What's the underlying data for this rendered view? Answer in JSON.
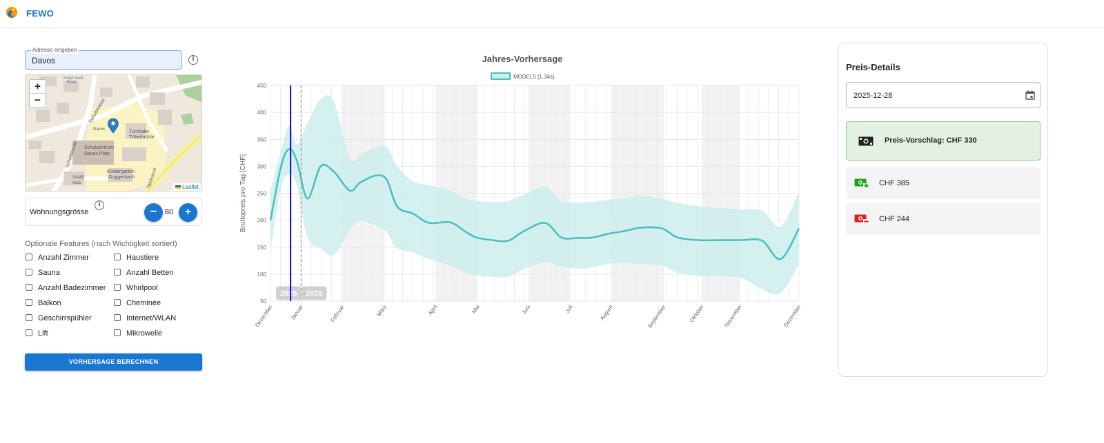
{
  "header": {
    "brand": "FEWO",
    "logo_icon": "wave-logo-icon"
  },
  "address": {
    "legend": "Adresse eingeben",
    "value": "Davos"
  },
  "map": {
    "zoom_in": "+",
    "zoom_out": "−",
    "attribution": "Leaflet",
    "labels": [
      "Hotel Hard Rock",
      "Schulstrasse",
      "Turnhalle Töbelmühle",
      "Schulzentrum Davos Platz",
      "Kindergarten Guggerbach",
      "SAMD Aula",
      "Talstrasse",
      "Davos"
    ]
  },
  "size": {
    "label": "Wohnungsgrösse",
    "value": "80",
    "minus": "−",
    "plus": "+"
  },
  "features": {
    "title": "Optionale Features (nach Wichtigkeit sortiert)",
    "left": [
      "Anzahl Zimmer",
      "Sauna",
      "Anzahl Badezimmer",
      "Balkon",
      "Geschirrspühler",
      "Lift"
    ],
    "right": [
      "Haustiere",
      "Anzahl Betten",
      "Whirlpool",
      "Cheminée",
      "Internet/WLAN",
      "Mikrowelle"
    ]
  },
  "calc_button": "VORHERSAGE BERECHNEN",
  "chart_data": {
    "type": "line",
    "title": "Jahres-Vorhersage",
    "legend": "MODEL5 [1.34s]",
    "ylabel": "Bruttopreis pro Tag [CHF]",
    "xlabel": "",
    "ylim": [
      50,
      450
    ],
    "yticks": [
      50,
      100,
      150,
      200,
      250,
      300,
      350,
      400,
      450
    ],
    "month_ticks": [
      "Dezember",
      "Januar",
      "Februar",
      "März",
      "April",
      "Mai",
      "Juni",
      "Juli",
      "August",
      "September",
      "Oktober",
      "November",
      "Dezember"
    ],
    "year_labels": [
      "2025",
      "2026"
    ],
    "color": "#4cbfbf",
    "band_color": "#cdeeed",
    "marker_color": "#0000ee",
    "series": [
      {
        "name": "MODEL5 [1.34s]",
        "x": [
          0,
          2,
          3.5,
          5,
          7,
          9.5,
          12,
          15,
          17,
          20,
          22,
          24,
          27,
          30,
          34,
          37,
          39,
          42,
          45,
          48,
          52,
          55,
          58,
          61,
          64,
          67,
          70,
          74,
          77,
          81,
          85,
          89,
          93,
          96.5,
          100
        ],
        "y": [
          200,
          300,
          332,
          310,
          240,
          300,
          290,
          255,
          270,
          283,
          275,
          225,
          212,
          195,
          196,
          178,
          168,
          163,
          162,
          180,
          195,
          168,
          167,
          168,
          175,
          180,
          186,
          185,
          168,
          163,
          163,
          163,
          162,
          128,
          185
        ],
        "upper": [
          255,
          330,
          375,
          340,
          380,
          425,
          420,
          315,
          322,
          335,
          336,
          300,
          272,
          265,
          255,
          240,
          236,
          234,
          236,
          248,
          262,
          236,
          233,
          234,
          238,
          240,
          245,
          240,
          232,
          226,
          223,
          220,
          218,
          188,
          252
        ],
        "lower": [
          145,
          260,
          285,
          262,
          168,
          148,
          135,
          182,
          198,
          190,
          178,
          148,
          140,
          128,
          116,
          103,
          97,
          95,
          95,
          110,
          122,
          114,
          110,
          113,
          119,
          121,
          118,
          117,
          103,
          96,
          96,
          93,
          72,
          65,
          118
        ]
      }
    ],
    "current_marker_x": 3.8,
    "today_marker_x": 5.8
  },
  "details": {
    "title": "Preis-Details",
    "date": "2025-12-28",
    "suggestion": "Preis-Vorschlag: CHF 330",
    "high": "CHF 385",
    "low": "CHF 244",
    "suggestion_bg": "#e2f1e2",
    "suggestion_border": "#8fcc8f",
    "high_icon_color": "#1aa31a",
    "low_icon_color": "#e02020"
  }
}
